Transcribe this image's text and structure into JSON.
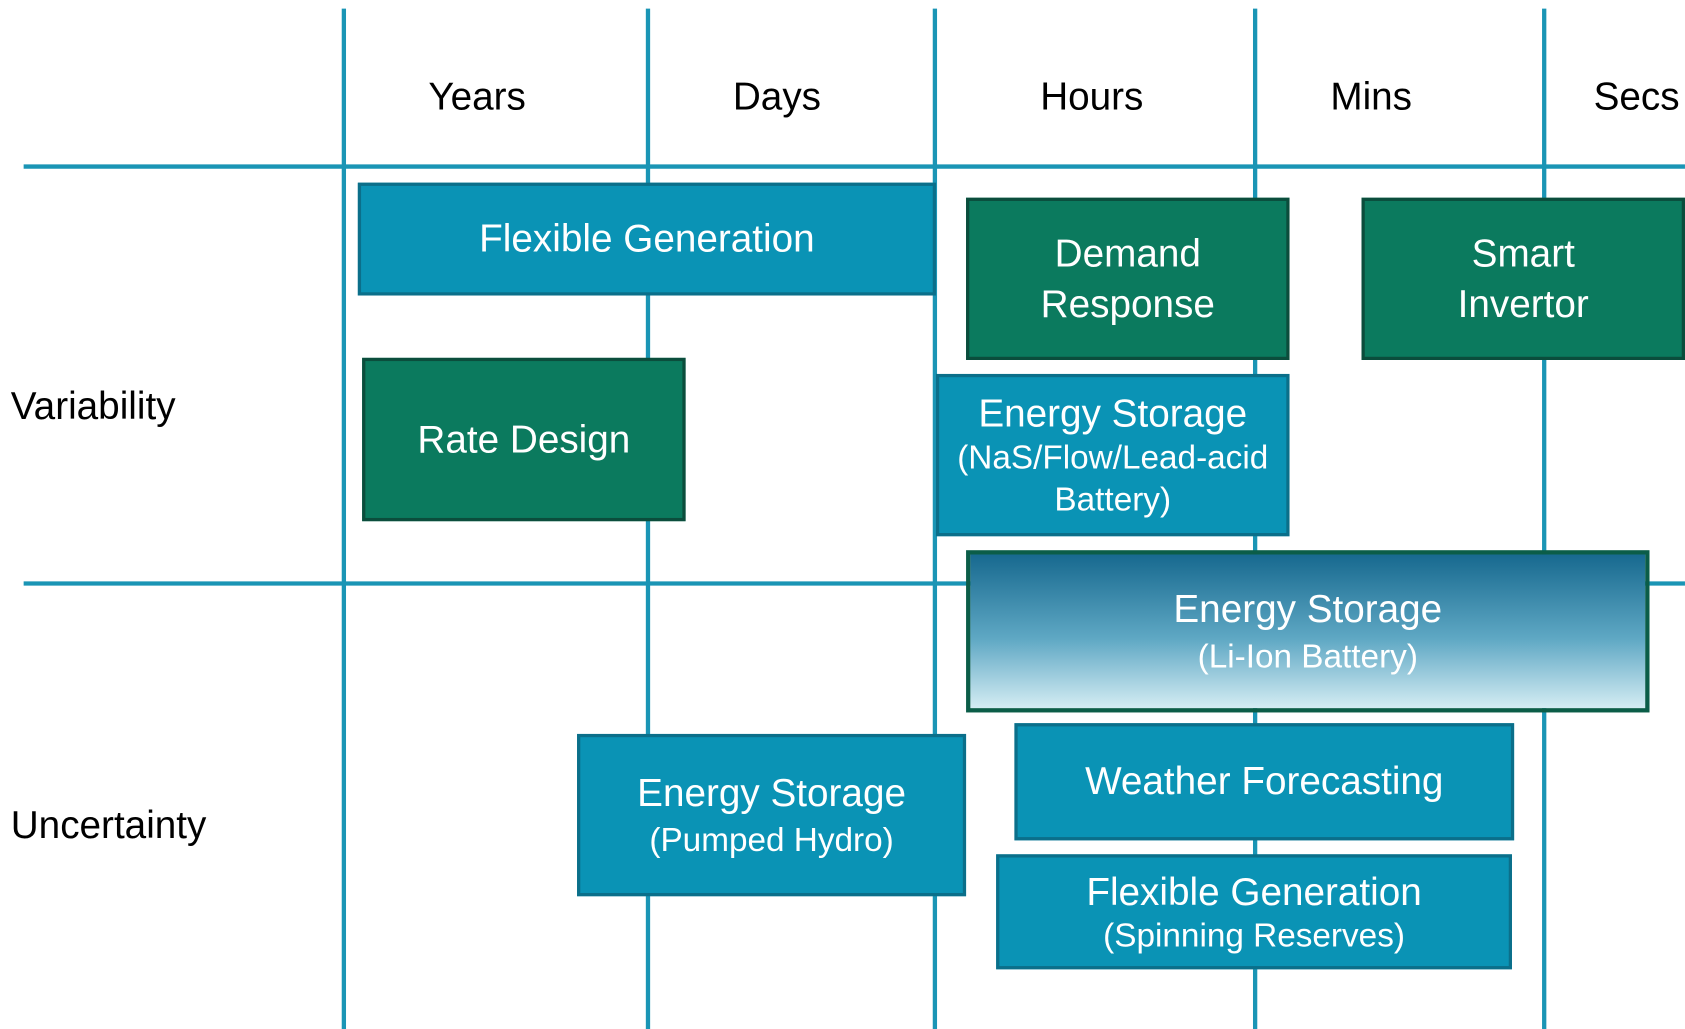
{
  "columns": [
    "Years",
    "Days",
    "Hours",
    "Mins",
    "Secs"
  ],
  "rows": [
    "Variability",
    "Uncertainty"
  ],
  "boxes": [
    {
      "title": "Flexible Generation"
    },
    {
      "title": "Demand Response"
    },
    {
      "title": "Smart Invertor"
    },
    {
      "title": "Rate Design"
    },
    {
      "title": "Energy Storage",
      "subtitle": "(NaS/Flow/Lead-acid Battery)"
    },
    {
      "title": "Energy Storage",
      "subtitle": "(Li-Ion Battery)"
    },
    {
      "title": "Weather Forecasting"
    },
    {
      "title": "Energy Storage",
      "subtitle": "(Pumped Hydro)"
    },
    {
      "title": "Flexible Generation",
      "subtitle": "(Spinning Reserves)"
    }
  ]
}
